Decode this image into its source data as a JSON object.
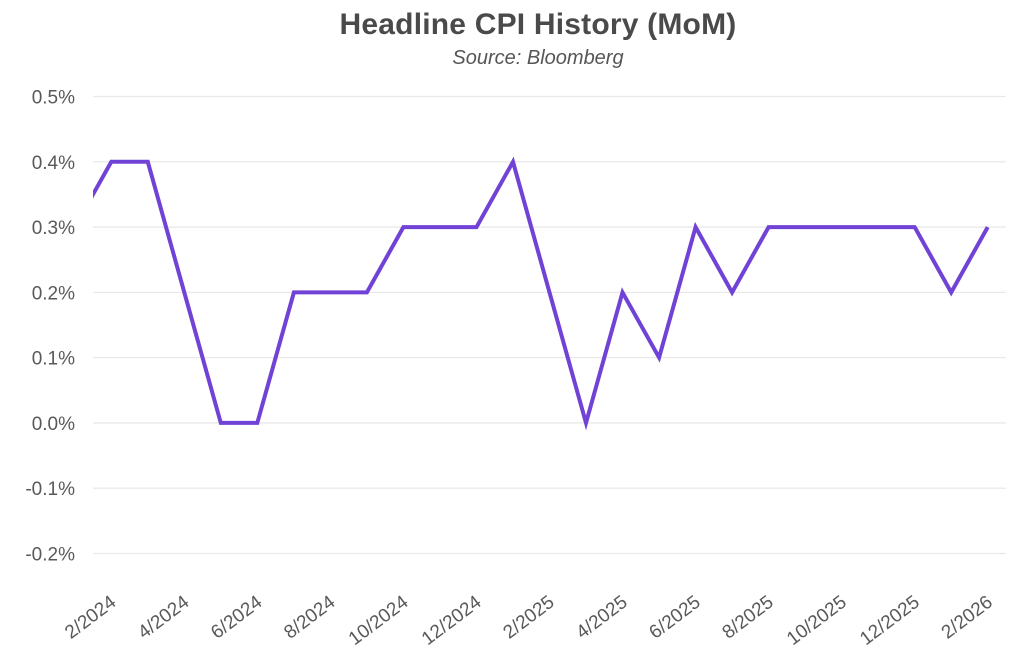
{
  "header": {
    "title": "Headline CPI History (MoM)",
    "subtitle": "Source: Bloomberg"
  },
  "chart_data": {
    "type": "line",
    "title": "Headline CPI History (MoM)",
    "subtitle": "Source: Bloomberg",
    "categories": [
      "2/2024",
      "3/2024",
      "4/2024",
      "5/2024",
      "6/2024",
      "7/2024",
      "8/2024",
      "9/2024",
      "10/2024",
      "11/2024",
      "12/2024",
      "1/2025",
      "2/2025",
      "3/2025",
      "4/2025",
      "5/2025",
      "6/2025",
      "7/2025",
      "8/2025",
      "9/2025",
      "10/2025",
      "11/2025",
      "12/2025",
      "1/2026",
      "2/2026"
    ],
    "series": [
      {
        "name": "Headline CPI MoM",
        "values": [
          0.4,
          0.4,
          0.2,
          0.0,
          0.0,
          0.2,
          0.2,
          0.2,
          0.3,
          0.3,
          0.3,
          0.4,
          0.2,
          0.0,
          0.2,
          0.1,
          0.3,
          0.2,
          0.3,
          0.3,
          0.3,
          0.3,
          0.3,
          0.2,
          0.3
        ]
      }
    ],
    "leading_clipped_point": {
      "category": "1/2024",
      "value": 0.3,
      "note": "line enters clipped at the left plot edge (~0.35%) rising toward 2/2024"
    },
    "unit": "% month-over-month",
    "ylim": [
      -0.2,
      0.5
    ],
    "y_ticks": [
      {
        "value": 0.5,
        "label": "0.5%"
      },
      {
        "value": 0.4,
        "label": "0.4%"
      },
      {
        "value": 0.3,
        "label": "0.3%"
      },
      {
        "value": 0.2,
        "label": "0.2%"
      },
      {
        "value": 0.1,
        "label": "0.1%"
      },
      {
        "value": 0.0,
        "label": "0.0%"
      },
      {
        "value": -0.1,
        "label": "-0.1%"
      },
      {
        "value": -0.2,
        "label": "-0.2%"
      }
    ],
    "x_tick_labels": [
      "2/2024",
      "4/2024",
      "6/2024",
      "8/2024",
      "10/2024",
      "12/2024",
      "2/2025",
      "4/2025",
      "6/2025",
      "8/2025",
      "10/2025",
      "12/2025",
      "2/2026"
    ],
    "x_tick_every": 2,
    "x_tick_rotation_deg": -37,
    "grid": "horizontal",
    "legend": "none",
    "colors": {
      "line": "#7142d6",
      "grid": "#e9e9e9",
      "title_text": "#4a4a4a",
      "tick_text": "#595959",
      "background": "#ffffff"
    }
  }
}
